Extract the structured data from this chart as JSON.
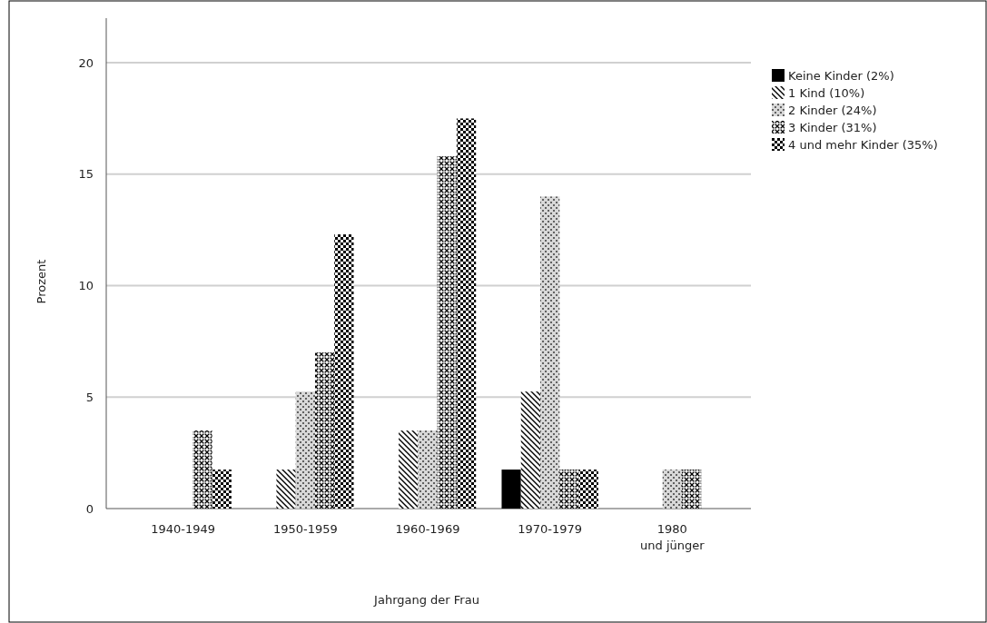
{
  "chart_data": {
    "type": "bar",
    "xlabel": "Jahrgang der Frau",
    "ylabel": "Prozent",
    "categories": [
      "1940-1949",
      "1950-1959",
      "1960-1969",
      "1970-1979",
      "1980 und jünger"
    ],
    "series": [
      {
        "name": "Keine Kinder (2%)",
        "color": "#000000",
        "values": [
          0,
          0,
          0,
          1.75,
          0
        ]
      },
      {
        "name": "1 Kind (10%)",
        "color": "#000000",
        "values": [
          0,
          1.75,
          3.5,
          5.25,
          0
        ]
      },
      {
        "name": "2 Kinder (24%)",
        "color": "#000000",
        "values": [
          0,
          5.25,
          3.5,
          14,
          1.75
        ]
      },
      {
        "name": "3 Kinder (31%)",
        "color": "#000000",
        "values": [
          3.5,
          7,
          15.8,
          1.75,
          1.75
        ]
      },
      {
        "name": "4 und mehr Kinder (35%)",
        "color": "#000000",
        "values": [
          1.75,
          12.3,
          17.5,
          1.75,
          0
        ]
      }
    ],
    "ylim": [
      0,
      22
    ],
    "yticks": [
      0,
      5,
      10,
      15,
      20
    ],
    "grid": "y",
    "legend": "top right"
  }
}
